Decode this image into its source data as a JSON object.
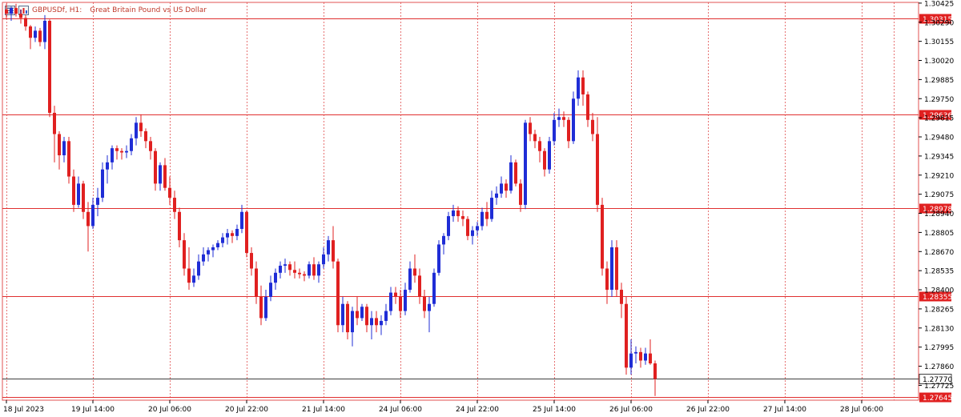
{
  "header": {
    "symbol": "GBPUSDf, H1:",
    "description": "Great Britain Pound vs US Dollar"
  },
  "colors": {
    "bull": "#1f2dd6",
    "bear": "#e02020",
    "hline": "#e03030",
    "grid": "#e05050",
    "current": "#404040",
    "label_bg": "#e02020",
    "axis_text": "#000000"
  },
  "chart_data": {
    "type": "candlestick",
    "title": "GBPUSDf, H1:  Great Britain Pound vs US Dollar",
    "timeframe": "H1",
    "ylim": [
      1.2762,
      1.3043
    ],
    "yticks": [
      "1.30425",
      "1.30290",
      "1.30155",
      "1.30020",
      "1.29885",
      "1.29750",
      "1.29615",
      "1.29480",
      "1.29345",
      "1.29210",
      "1.29075",
      "1.28940",
      "1.28805",
      "1.28670",
      "1.28535",
      "1.28400",
      "1.28265",
      "1.28130",
      "1.27995",
      "1.27860",
      "1.27725"
    ],
    "xticks": [
      {
        "label": "18 Jul 2023",
        "bar": 0
      },
      {
        "label": "19 Jul 14:00",
        "bar": 18
      },
      {
        "label": "20 Jul 06:00",
        "bar": 34
      },
      {
        "label": "20 Jul 22:00",
        "bar": 50
      },
      {
        "label": "21 Jul 14:00",
        "bar": 66
      },
      {
        "label": "24 Jul 06:00",
        "bar": 82
      },
      {
        "label": "24 Jul 22:00",
        "bar": 98
      },
      {
        "label": "25 Jul 14:00",
        "bar": 114
      },
      {
        "label": "26 Jul 06:00",
        "bar": 130
      },
      {
        "label": "26 Jul 22:00",
        "bar": 146
      },
      {
        "label": "27 Jul 14:00",
        "bar": 162
      },
      {
        "label": "28 Jul 06:00",
        "bar": 178
      }
    ],
    "horizontal_lines": [
      {
        "value": 1.30315,
        "label": "1.30315",
        "style": "level"
      },
      {
        "value": 1.29636,
        "label": "1.29636",
        "style": "level"
      },
      {
        "value": 1.28978,
        "label": "1.28978",
        "style": "level"
      },
      {
        "value": 1.28355,
        "label": "1.28355",
        "style": "level"
      },
      {
        "value": 1.2777,
        "label": "1.27770",
        "style": "current"
      },
      {
        "value": 1.27645,
        "label": "1.27645",
        "style": "level"
      }
    ],
    "candles": [
      [
        1.3038,
        1.3042,
        1.3031,
        1.3035
      ],
      [
        1.3035,
        1.304,
        1.303,
        1.3039
      ],
      [
        1.3039,
        1.3042,
        1.3033,
        1.3035
      ],
      [
        1.3035,
        1.3038,
        1.3028,
        1.3032
      ],
      [
        1.3032,
        1.3034,
        1.3023,
        1.3026
      ],
      [
        1.3026,
        1.3027,
        1.301,
        1.3018
      ],
      [
        1.3018,
        1.3026,
        1.3015,
        1.3023
      ],
      [
        1.3023,
        1.3025,
        1.3012,
        1.3015
      ],
      [
        1.3015,
        1.3034,
        1.301,
        1.303
      ],
      [
        1.303,
        1.3031,
        1.2962,
        1.2965
      ],
      [
        1.2965,
        1.297,
        1.293,
        1.295
      ],
      [
        1.295,
        1.2952,
        1.2925,
        1.2935
      ],
      [
        1.2935,
        1.2948,
        1.293,
        1.2945
      ],
      [
        1.2945,
        1.2948,
        1.2915,
        1.292
      ],
      [
        1.292,
        1.2925,
        1.2895,
        1.29
      ],
      [
        1.29,
        1.292,
        1.2898,
        1.2915
      ],
      [
        1.2915,
        1.2917,
        1.289,
        1.2895
      ],
      [
        1.2895,
        1.2902,
        1.2867,
        1.2885
      ],
      [
        1.2885,
        1.2905,
        1.2883,
        1.29
      ],
      [
        1.29,
        1.2912,
        1.2892,
        1.2905
      ],
      [
        1.2905,
        1.293,
        1.2902,
        1.2925
      ],
      [
        1.2925,
        1.2935,
        1.2915,
        1.293
      ],
      [
        1.293,
        1.2942,
        1.2925,
        1.294
      ],
      [
        1.294,
        1.2942,
        1.2932,
        1.2938
      ],
      [
        1.2938,
        1.294,
        1.2932,
        1.2937
      ],
      [
        1.2937,
        1.2942,
        1.2933,
        1.2938
      ],
      [
        1.2938,
        1.295,
        1.2935,
        1.2947
      ],
      [
        1.2947,
        1.2962,
        1.2942,
        1.2958
      ],
      [
        1.2958,
        1.2964,
        1.2948,
        1.2952
      ],
      [
        1.2952,
        1.2954,
        1.294,
        1.2945
      ],
      [
        1.2945,
        1.2948,
        1.2932,
        1.2938
      ],
      [
        1.2938,
        1.294,
        1.291,
        1.2915
      ],
      [
        1.2915,
        1.293,
        1.291,
        1.2928
      ],
      [
        1.2928,
        1.2933,
        1.291,
        1.2912
      ],
      [
        1.2912,
        1.292,
        1.29,
        1.2905
      ],
      [
        1.2905,
        1.291,
        1.289,
        1.2895
      ],
      [
        1.2895,
        1.2898,
        1.287,
        1.2875
      ],
      [
        1.2875,
        1.288,
        1.285,
        1.2855
      ],
      [
        1.2855,
        1.287,
        1.284,
        1.2845
      ],
      [
        1.2845,
        1.2855,
        1.2842,
        1.285
      ],
      [
        1.285,
        1.2865,
        1.2847,
        1.286
      ],
      [
        1.286,
        1.287,
        1.2857,
        1.2865
      ],
      [
        1.2865,
        1.287,
        1.286,
        1.2868
      ],
      [
        1.2868,
        1.2872,
        1.2863,
        1.287
      ],
      [
        1.287,
        1.2875,
        1.2868,
        1.2873
      ],
      [
        1.2873,
        1.288,
        1.287,
        1.2877
      ],
      [
        1.2877,
        1.2883,
        1.2872,
        1.288
      ],
      [
        1.288,
        1.2882,
        1.2873,
        1.2878
      ],
      [
        1.2878,
        1.2886,
        1.2875,
        1.2883
      ],
      [
        1.2883,
        1.29,
        1.288,
        1.2895
      ],
      [
        1.2895,
        1.2896,
        1.2863,
        1.2866
      ],
      [
        1.2866,
        1.287,
        1.285,
        1.2855
      ],
      [
        1.2855,
        1.286,
        1.283,
        1.2835
      ],
      [
        1.2835,
        1.2843,
        1.2815,
        1.282
      ],
      [
        1.282,
        1.284,
        1.2818,
        1.2835
      ],
      [
        1.2835,
        1.285,
        1.2832,
        1.2845
      ],
      [
        1.2845,
        1.2855,
        1.284,
        1.2852
      ],
      [
        1.2852,
        1.286,
        1.2848,
        1.2857
      ],
      [
        1.2857,
        1.2862,
        1.2852,
        1.2858
      ],
      [
        1.2858,
        1.286,
        1.285,
        1.2854
      ],
      [
        1.2854,
        1.286,
        1.2848,
        1.2852
      ],
      [
        1.2852,
        1.2855,
        1.2848,
        1.2851
      ],
      [
        1.2851,
        1.2853,
        1.2846,
        1.285
      ],
      [
        1.285,
        1.286,
        1.2848,
        1.2858
      ],
      [
        1.2858,
        1.2863,
        1.2847,
        1.285
      ],
      [
        1.285,
        1.286,
        1.2845,
        1.2858
      ],
      [
        1.2858,
        1.287,
        1.2855,
        1.2865
      ],
      [
        1.2865,
        1.2878,
        1.286,
        1.2875
      ],
      [
        1.2875,
        1.2885,
        1.2855,
        1.286
      ],
      [
        1.286,
        1.2862,
        1.281,
        1.2815
      ],
      [
        1.2815,
        1.2835,
        1.281,
        1.283
      ],
      [
        1.283,
        1.2832,
        1.2805,
        1.281
      ],
      [
        1.281,
        1.2828,
        1.28,
        1.2825
      ],
      [
        1.2825,
        1.2835,
        1.2815,
        1.282
      ],
      [
        1.282,
        1.283,
        1.2818,
        1.2828
      ],
      [
        1.2828,
        1.283,
        1.281,
        1.2815
      ],
      [
        1.2815,
        1.2825,
        1.2805,
        1.282
      ],
      [
        1.282,
        1.2825,
        1.281,
        1.2815
      ],
      [
        1.2815,
        1.2822,
        1.2808,
        1.2818
      ],
      [
        1.2818,
        1.283,
        1.2815,
        1.2825
      ],
      [
        1.2825,
        1.2842,
        1.2822,
        1.2838
      ],
      [
        1.2838,
        1.2842,
        1.283,
        1.2835
      ],
      [
        1.2835,
        1.284,
        1.282,
        1.2825
      ],
      [
        1.2825,
        1.2845,
        1.2822,
        1.284
      ],
      [
        1.284,
        1.286,
        1.2838,
        1.2855
      ],
      [
        1.2855,
        1.2865,
        1.2845,
        1.285
      ],
      [
        1.285,
        1.2855,
        1.283,
        1.2835
      ],
      [
        1.2835,
        1.284,
        1.282,
        1.2825
      ],
      [
        1.2825,
        1.2835,
        1.281,
        1.283
      ],
      [
        1.283,
        1.2855,
        1.2828,
        1.2852
      ],
      [
        1.2852,
        1.2875,
        1.285,
        1.2872
      ],
      [
        1.2872,
        1.288,
        1.2865,
        1.2878
      ],
      [
        1.2878,
        1.2895,
        1.2875,
        1.2892
      ],
      [
        1.2892,
        1.29,
        1.2888,
        1.2896
      ],
      [
        1.2896,
        1.2899,
        1.2888,
        1.2892
      ],
      [
        1.2892,
        1.2896,
        1.2885,
        1.289
      ],
      [
        1.289,
        1.2892,
        1.2875,
        1.2878
      ],
      [
        1.2878,
        1.2885,
        1.2872,
        1.2882
      ],
      [
        1.2882,
        1.2888,
        1.2878,
        1.2885
      ],
      [
        1.2885,
        1.2898,
        1.2882,
        1.2895
      ],
      [
        1.2895,
        1.2902,
        1.2885,
        1.289
      ],
      [
        1.289,
        1.291,
        1.2888,
        1.2905
      ],
      [
        1.2905,
        1.2913,
        1.29,
        1.2908
      ],
      [
        1.2908,
        1.292,
        1.2905,
        1.2915
      ],
      [
        1.2915,
        1.2918,
        1.2905,
        1.291
      ],
      [
        1.291,
        1.2935,
        1.2908,
        1.293
      ],
      [
        1.293,
        1.2932,
        1.2913,
        1.2915
      ],
      [
        1.2915,
        1.2918,
        1.2895,
        1.29
      ],
      [
        1.29,
        1.296,
        1.2897,
        1.2958
      ],
      [
        1.2958,
        1.2962,
        1.2945,
        1.295
      ],
      [
        1.295,
        1.2953,
        1.294,
        1.2945
      ],
      [
        1.2945,
        1.2948,
        1.293,
        1.2938
      ],
      [
        1.2938,
        1.294,
        1.292,
        1.2925
      ],
      [
        1.2925,
        1.2948,
        1.2922,
        1.2945
      ],
      [
        1.2945,
        1.2965,
        1.2942,
        1.296
      ],
      [
        1.296,
        1.2968,
        1.2955,
        1.2962
      ],
      [
        1.2962,
        1.2966,
        1.2955,
        1.296
      ],
      [
        1.296,
        1.2962,
        1.294,
        1.2945
      ],
      [
        1.2945,
        1.298,
        1.2943,
        1.2975
      ],
      [
        1.2975,
        1.2995,
        1.297,
        1.299
      ],
      [
        1.299,
        1.2995,
        1.297,
        1.2978
      ],
      [
        1.2978,
        1.298,
        1.2955,
        1.296
      ],
      [
        1.296,
        1.2965,
        1.2945,
        1.295
      ],
      [
        1.295,
        1.2962,
        1.2895,
        1.29
      ],
      [
        1.29,
        1.2905,
        1.285,
        1.2855
      ],
      [
        1.2855,
        1.286,
        1.283,
        1.284
      ],
      [
        1.284,
        1.2875,
        1.2835,
        1.287
      ],
      [
        1.287,
        1.2875,
        1.2835,
        1.284
      ],
      [
        1.284,
        1.2845,
        1.282,
        1.283
      ],
      [
        1.283,
        1.2835,
        1.278,
        1.2785
      ],
      [
        1.2785,
        1.2805,
        1.278,
        1.2795
      ],
      [
        1.2795,
        1.28,
        1.2788,
        1.2796
      ],
      [
        1.2796,
        1.2799,
        1.2785,
        1.279
      ],
      [
        1.279,
        1.2799,
        1.2787,
        1.2795
      ],
      [
        1.2795,
        1.2805,
        1.2787,
        1.2788
      ],
      [
        1.2788,
        1.279,
        1.2765,
        1.2777
      ]
    ]
  }
}
